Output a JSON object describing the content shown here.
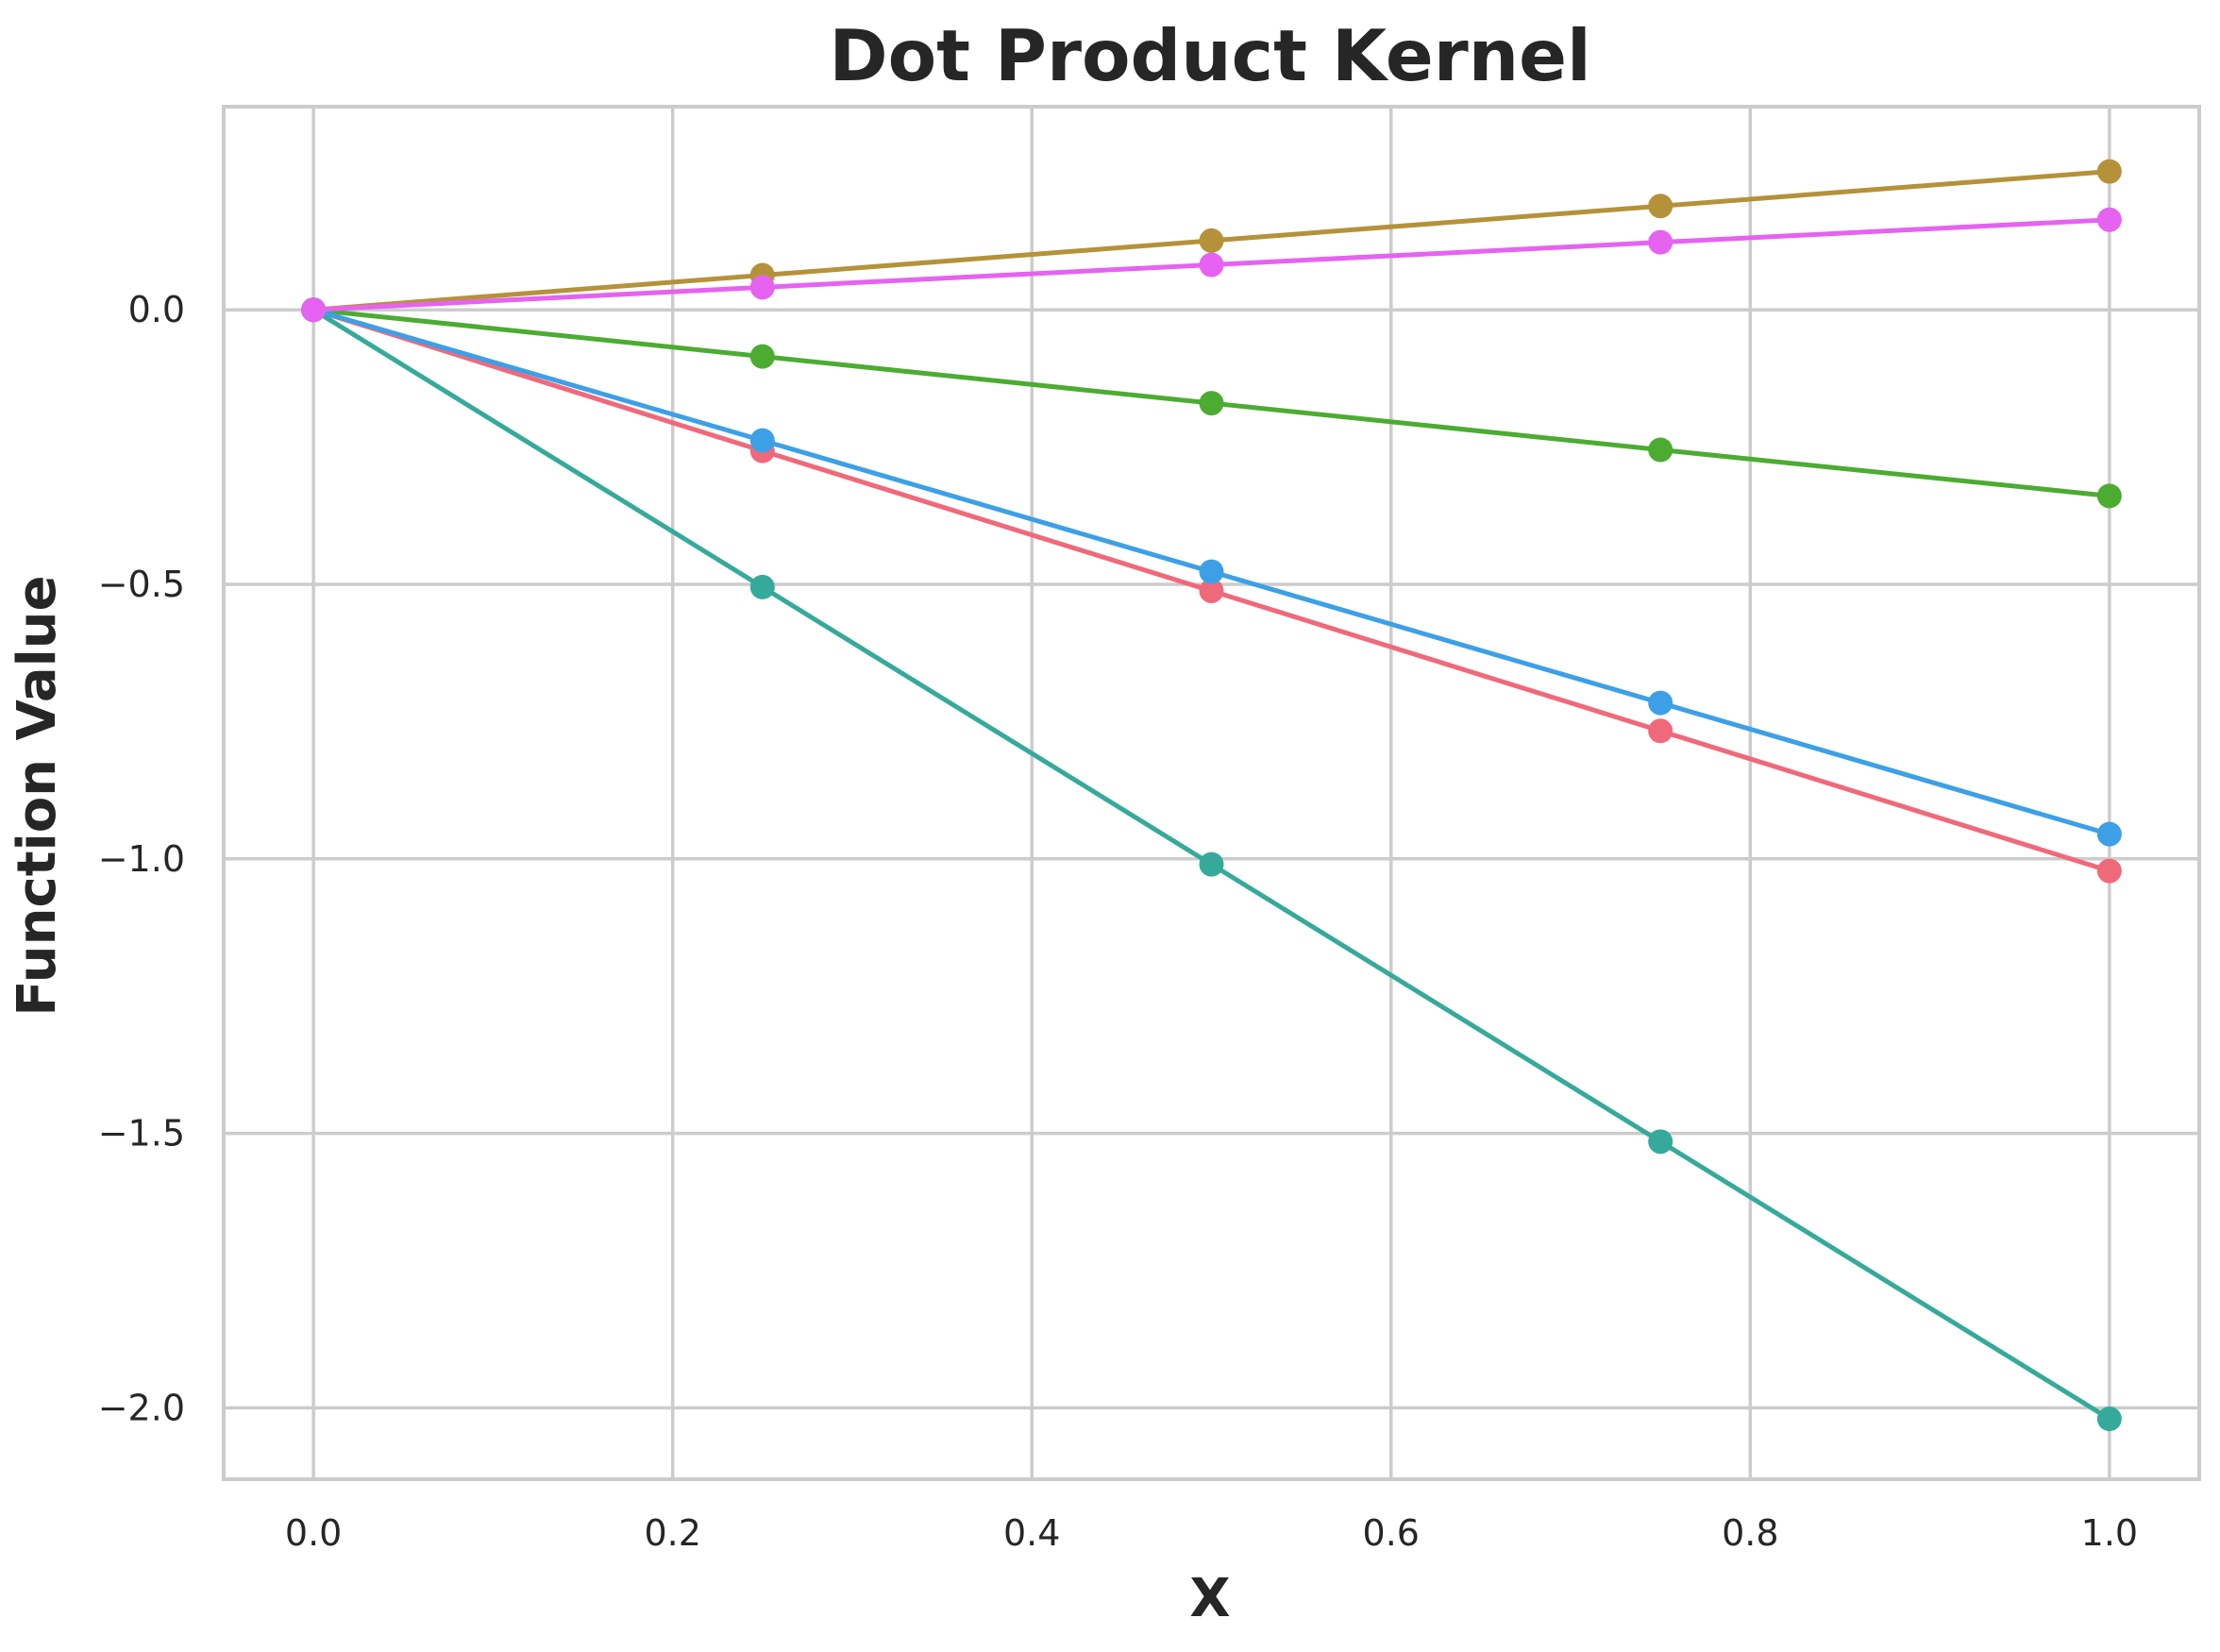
{
  "chart_data": {
    "type": "line",
    "title": "Dot Product Kernel",
    "xlabel": "X",
    "ylabel": "Function Value",
    "xlim": [
      -0.05,
      1.05
    ],
    "ylim": [
      -2.13,
      0.37
    ],
    "xticks": [
      0.0,
      0.2,
      0.4,
      0.6,
      0.8,
      1.0
    ],
    "xtick_labels": [
      "0.0",
      "0.2",
      "0.4",
      "0.6",
      "0.8",
      "1.0"
    ],
    "yticks": [
      0.0,
      -0.5,
      -1.0,
      -1.5,
      -2.0
    ],
    "ytick_labels": [
      "0.0",
      "−0.5",
      "−1.0",
      "−1.5",
      "−2.0"
    ],
    "grid": true,
    "x": [
      0.0,
      0.25,
      0.5,
      0.75,
      1.0
    ],
    "series": [
      {
        "color": "#f0697a",
        "values": [
          0.0,
          -0.257,
          -0.512,
          -0.767,
          -1.022
        ]
      },
      {
        "color": "#b5923a",
        "values": [
          0.0,
          0.063,
          0.126,
          0.189,
          0.252
        ]
      },
      {
        "color": "#4cac32",
        "values": [
          0.0,
          -0.085,
          -0.17,
          -0.255,
          -0.339
        ]
      },
      {
        "color": "#36aa9a",
        "values": [
          0.0,
          -0.505,
          -1.01,
          -1.515,
          -2.02
        ]
      },
      {
        "color": "#3da0e6",
        "values": [
          0.0,
          -0.238,
          -0.477,
          -0.716,
          -0.955
        ]
      },
      {
        "color": "#e563f0",
        "values": [
          0.0,
          0.041,
          0.082,
          0.123,
          0.164
        ]
      }
    ]
  }
}
